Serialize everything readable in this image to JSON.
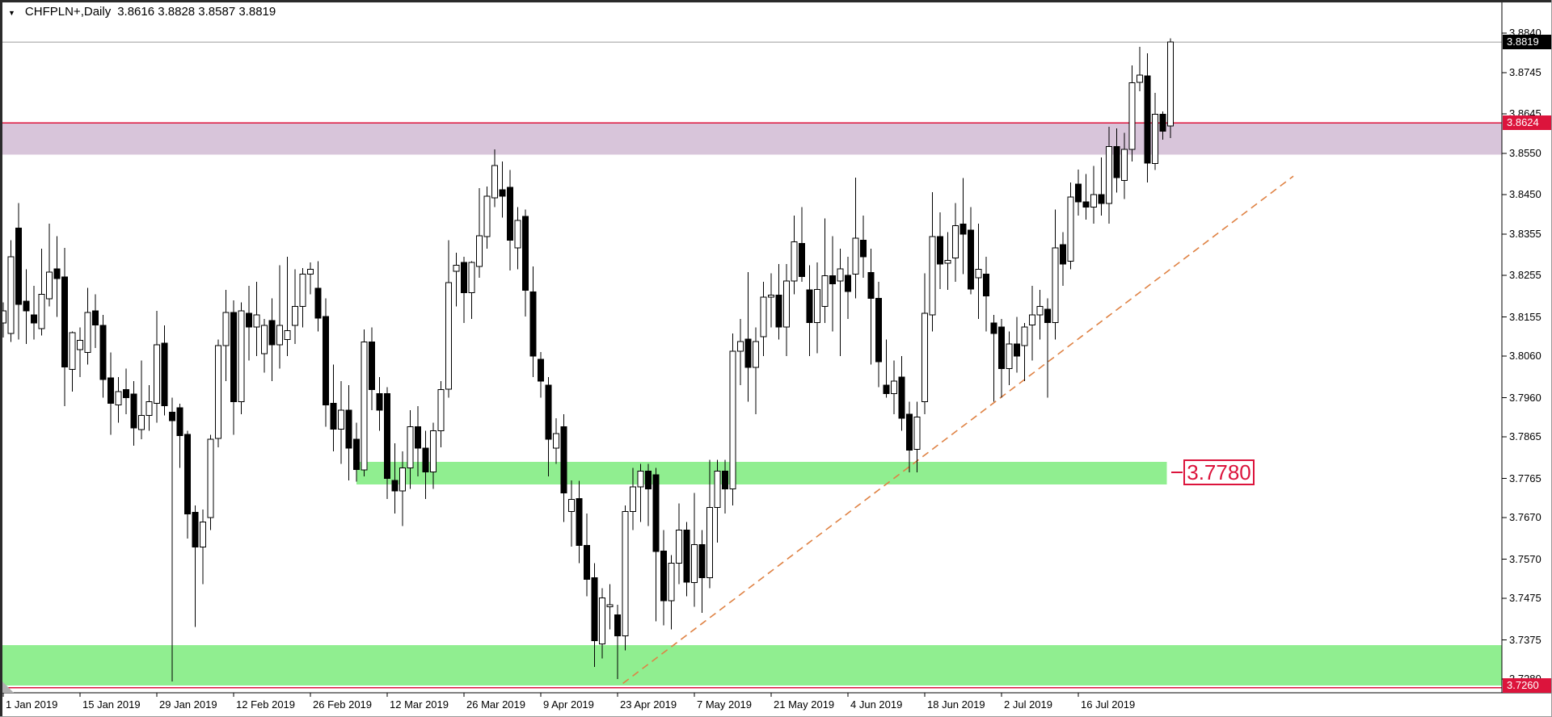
{
  "window": {
    "title_symbol": "CHFPLN+,Daily",
    "title_ohlc": "3.8616 3.8828 3.8587 3.8819",
    "dropdown_glyph": "▼"
  },
  "price_axis": {
    "ticks": [
      "3.8840",
      "3.8745",
      "3.8645",
      "3.8550",
      "3.8450",
      "3.8355",
      "3.8255",
      "3.8155",
      "3.8060",
      "3.7960",
      "3.7865",
      "3.7765",
      "3.7670",
      "3.7570",
      "3.7475",
      "3.7375",
      "3.7280"
    ],
    "tick_values": [
      3.884,
      3.8745,
      3.8645,
      3.855,
      3.845,
      3.8355,
      3.8255,
      3.8155,
      3.806,
      3.796,
      3.7865,
      3.7765,
      3.767,
      3.757,
      3.7475,
      3.7375,
      3.728
    ],
    "current_price_tag": "3.8819",
    "resistance_price_tag": "3.8624",
    "support_price_tag": "3.7260"
  },
  "time_axis": {
    "labels": [
      "1 Jan 2019",
      "15 Jan 2019",
      "29 Jan 2019",
      "12 Feb 2019",
      "26 Feb 2019",
      "12 Mar 2019",
      "26 Mar 2019",
      "9 Apr 2019",
      "23 Apr 2019",
      "7 May 2019",
      "21 May 2019",
      "4 Jun 2019",
      "18 Jun 2019",
      "2 Jul 2019",
      "16 Jul 2019"
    ]
  },
  "annotations": {
    "zone_price_label": "3.7780"
  },
  "colors": {
    "background": "#ffffff",
    "candle_outline": "#000000",
    "candle_bull_fill": "#ffffff",
    "candle_bear_fill": "#000000",
    "resistance_zone": "#d8c5da",
    "support_zone": "#90ee90",
    "crimson_line": "#dc143c",
    "current_price_line": "#bdbdbd",
    "current_tag_bg": "#000000",
    "crimson_tag_bg": "#dc143c",
    "trendline": "#df8244",
    "axis_text": "#000000"
  },
  "chart_data": {
    "type": "candlestick",
    "title": "CHFPLN+,Daily",
    "symbol": "CHFPLN+",
    "timeframe": "Daily",
    "current_ohlc": {
      "open": 3.8616,
      "high": 3.8828,
      "low": 3.8587,
      "close": 3.8819
    },
    "ylim": [
      3.7247,
      3.887
    ],
    "x_labels": [
      "1 Jan 2019",
      "15 Jan 2019",
      "29 Jan 2019",
      "12 Feb 2019",
      "26 Feb 2019",
      "12 Mar 2019",
      "26 Mar 2019",
      "9 Apr 2019",
      "23 Apr 2019",
      "7 May 2019",
      "21 May 2019",
      "4 Jun 2019",
      "18 Jun 2019",
      "2 Jul 2019",
      "16 Jul 2019"
    ],
    "x_label_every_n_candles": 10,
    "grid": false,
    "candles_ohlc": [
      [
        3.814,
        3.819,
        3.8105,
        3.817
      ],
      [
        3.8115,
        3.834,
        3.8095,
        3.83
      ],
      [
        3.837,
        3.843,
        3.81,
        3.8185
      ],
      [
        3.8193,
        3.827,
        3.809,
        3.817
      ],
      [
        3.816,
        3.823,
        3.81,
        3.814
      ],
      [
        3.8127,
        3.832,
        3.811,
        3.821
      ],
      [
        3.8199,
        3.838,
        3.818,
        3.8263
      ],
      [
        3.8271,
        3.835,
        3.8155,
        3.8248
      ],
      [
        3.8252,
        3.8322,
        3.794,
        3.8034
      ],
      [
        3.8028,
        3.812,
        3.7975,
        3.8117
      ],
      [
        3.8076,
        3.813,
        3.801,
        3.8098
      ],
      [
        3.8069,
        3.8225,
        3.804,
        3.8166
      ],
      [
        3.817,
        3.821,
        3.808,
        3.8135
      ],
      [
        3.8135,
        3.816,
        3.796,
        3.8004
      ],
      [
        3.8008,
        3.8069,
        3.787,
        3.7946
      ],
      [
        3.7942,
        3.801,
        3.79,
        3.7975
      ],
      [
        3.798,
        3.803,
        3.792,
        3.796
      ],
      [
        3.7969,
        3.8,
        3.7844,
        3.7887
      ],
      [
        3.7883,
        3.805,
        3.786,
        3.7917
      ],
      [
        3.7917,
        3.799,
        3.788,
        3.795
      ],
      [
        3.7946,
        3.817,
        3.79,
        3.8088
      ],
      [
        3.8092,
        3.8135,
        3.7917,
        3.794
      ],
      [
        3.7925,
        3.796,
        3.7275,
        3.7905
      ],
      [
        3.7936,
        3.7945,
        3.779,
        3.7868
      ],
      [
        3.7871,
        3.788,
        3.762,
        3.7679
      ],
      [
        3.7683,
        3.77,
        3.7406,
        3.7599
      ],
      [
        3.7599,
        3.769,
        3.751,
        3.766
      ],
      [
        3.767,
        3.787,
        3.764,
        3.786
      ],
      [
        3.7862,
        3.81,
        3.784,
        3.8086
      ],
      [
        3.8086,
        3.822,
        3.8,
        3.8166
      ],
      [
        3.8166,
        3.8195,
        3.787,
        3.795
      ],
      [
        3.795,
        3.819,
        3.792,
        3.817
      ],
      [
        3.8164,
        3.823,
        3.805,
        3.8131
      ],
      [
        3.8131,
        3.824,
        3.806,
        3.816
      ],
      [
        3.8066,
        3.815,
        3.802,
        3.8135
      ],
      [
        3.8146,
        3.82,
        3.8,
        3.8088
      ],
      [
        3.8088,
        3.828,
        3.803,
        3.8135
      ],
      [
        3.81,
        3.83,
        3.806,
        3.8122
      ],
      [
        3.8135,
        3.827,
        3.809,
        3.818
      ],
      [
        3.818,
        3.8273,
        3.813,
        3.8258
      ],
      [
        3.8258,
        3.8287,
        3.821,
        3.827
      ],
      [
        3.8224,
        3.829,
        3.812,
        3.8152
      ],
      [
        3.8156,
        3.82,
        3.789,
        3.7942
      ],
      [
        3.7946,
        3.804,
        3.783,
        3.7884
      ],
      [
        3.7884,
        3.8,
        3.78,
        3.793
      ],
      [
        3.793,
        3.799,
        3.776,
        3.7838
      ],
      [
        3.786,
        3.79,
        3.7757,
        3.7786
      ],
      [
        3.7786,
        3.8125,
        3.777,
        3.8095
      ],
      [
        3.8095,
        3.813,
        3.793,
        3.798
      ],
      [
        3.797,
        3.801,
        3.788,
        3.793
      ],
      [
        3.797,
        3.7985,
        3.7715,
        3.7765
      ],
      [
        3.776,
        3.785,
        3.768,
        3.7735
      ],
      [
        3.7735,
        3.783,
        3.765,
        3.779
      ],
      [
        3.779,
        3.793,
        3.774,
        3.789
      ],
      [
        3.789,
        3.794,
        3.777,
        3.7838
      ],
      [
        3.7838,
        3.788,
        3.7715,
        3.7781
      ],
      [
        3.7781,
        3.79,
        3.774,
        3.788
      ],
      [
        3.788,
        3.8,
        3.784,
        3.798
      ],
      [
        3.798,
        3.834,
        3.796,
        3.8238
      ],
      [
        3.8265,
        3.831,
        3.818,
        3.828
      ],
      [
        3.8287,
        3.83,
        3.814,
        3.8213
      ],
      [
        3.8213,
        3.829,
        3.815,
        3.8287
      ],
      [
        3.8277,
        3.8466,
        3.825,
        3.8351
      ],
      [
        3.8349,
        3.847,
        3.832,
        3.8447
      ],
      [
        3.8443,
        3.856,
        3.842,
        3.8521
      ],
      [
        3.8462,
        3.853,
        3.8395,
        3.8447
      ],
      [
        3.8468,
        3.851,
        3.8267,
        3.834
      ],
      [
        3.8322,
        3.842,
        3.827,
        3.8388
      ],
      [
        3.8398,
        3.8414,
        3.8156,
        3.8219
      ],
      [
        3.8215,
        3.8277,
        3.801,
        3.806
      ],
      [
        3.8053,
        3.807,
        3.796,
        3.8
      ],
      [
        3.799,
        3.801,
        3.777,
        3.786
      ],
      [
        3.7838,
        3.791,
        3.78,
        3.7873
      ],
      [
        3.789,
        3.792,
        3.766,
        3.773
      ],
      [
        3.7685,
        3.776,
        3.76,
        3.7714
      ],
      [
        3.7716,
        3.7759,
        3.756,
        3.7603
      ],
      [
        3.7603,
        3.768,
        3.748,
        3.7521
      ],
      [
        3.7525,
        3.756,
        3.731,
        3.7373
      ],
      [
        3.7365,
        3.75,
        3.733,
        3.7476
      ],
      [
        3.7455,
        3.751,
        3.74,
        3.746
      ],
      [
        3.7435,
        3.746,
        3.728,
        3.7385
      ],
      [
        3.7385,
        3.77,
        3.735,
        3.7685
      ],
      [
        3.7685,
        3.779,
        3.764,
        3.7745
      ],
      [
        3.7745,
        3.78,
        3.766,
        3.7783
      ],
      [
        3.7783,
        3.78,
        3.765,
        3.774
      ],
      [
        3.7774,
        3.779,
        3.742,
        3.7589
      ],
      [
        3.759,
        3.764,
        3.741,
        3.747
      ],
      [
        3.747,
        3.758,
        3.74,
        3.756
      ],
      [
        3.756,
        3.7705,
        3.751,
        3.764
      ],
      [
        3.764,
        3.766,
        3.748,
        3.7514
      ],
      [
        3.7514,
        3.773,
        3.7455,
        3.7605
      ],
      [
        3.7605,
        3.764,
        3.744,
        3.7525
      ],
      [
        3.7525,
        3.781,
        3.75,
        3.7695
      ],
      [
        3.7695,
        3.781,
        3.761,
        3.7783
      ],
      [
        3.7783,
        3.781,
        3.768,
        3.774
      ],
      [
        3.774,
        3.8115,
        3.77,
        3.8072
      ],
      [
        3.8072,
        3.815,
        3.799,
        3.8096
      ],
      [
        3.8101,
        3.8263,
        3.795,
        3.8033
      ],
      [
        3.8033,
        3.813,
        3.792,
        3.8096
      ],
      [
        3.8107,
        3.824,
        3.806,
        3.8203
      ],
      [
        3.8203,
        3.826,
        3.813,
        3.8208
      ],
      [
        3.8208,
        3.8283,
        3.81,
        3.8131
      ],
      [
        3.8131,
        3.8283,
        3.806,
        3.8242
      ],
      [
        3.8242,
        3.84,
        3.821,
        3.8336
      ],
      [
        3.8332,
        3.842,
        3.824,
        3.8252
      ],
      [
        3.822,
        3.828,
        3.806,
        3.8141
      ],
      [
        3.8141,
        3.8287,
        3.8067,
        3.8221
      ],
      [
        3.818,
        3.8393,
        3.814,
        3.8254
      ],
      [
        3.8254,
        3.835,
        3.812,
        3.8235
      ],
      [
        3.8242,
        3.832,
        3.806,
        3.8271
      ],
      [
        3.8255,
        3.83,
        3.815,
        3.8216
      ],
      [
        3.8258,
        3.8491,
        3.82,
        3.8345
      ],
      [
        3.834,
        3.84,
        3.825,
        3.83
      ],
      [
        3.8262,
        3.832,
        3.804,
        3.82
      ],
      [
        3.82,
        3.824,
        3.7985,
        3.8047
      ],
      [
        3.799,
        3.81,
        3.796,
        3.797
      ],
      [
        3.797,
        3.805,
        3.792,
        3.8
      ],
      [
        3.801,
        3.806,
        3.788,
        3.791
      ],
      [
        3.792,
        3.795,
        3.778,
        3.7833
      ],
      [
        3.7835,
        3.795,
        3.778,
        3.7913
      ],
      [
        3.795,
        3.826,
        3.792,
        3.8164
      ],
      [
        3.816,
        3.8456,
        3.812,
        3.8349
      ],
      [
        3.8349,
        3.8408,
        3.8222,
        3.8283
      ],
      [
        3.8285,
        3.836,
        3.822,
        3.8292
      ],
      [
        3.8297,
        3.843,
        3.824,
        3.8375
      ],
      [
        3.8379,
        3.849,
        3.8258,
        3.8355
      ],
      [
        3.8365,
        3.842,
        3.821,
        3.8222
      ],
      [
        3.825,
        3.838,
        3.815,
        3.827
      ],
      [
        3.8258,
        3.83,
        3.812,
        3.8206
      ],
      [
        3.814,
        3.816,
        3.795,
        3.8115
      ],
      [
        3.8131,
        3.815,
        3.796,
        3.803
      ],
      [
        3.803,
        3.812,
        3.799,
        3.809
      ],
      [
        3.809,
        3.8155,
        3.802,
        3.806
      ],
      [
        3.8086,
        3.814,
        3.8,
        3.8131
      ],
      [
        3.8135,
        3.823,
        3.805,
        3.816
      ],
      [
        3.816,
        3.822,
        3.81,
        3.818
      ],
      [
        3.8174,
        3.82,
        3.796,
        3.8141
      ],
      [
        3.8141,
        3.8414,
        3.81,
        3.8322
      ],
      [
        3.833,
        3.836,
        3.823,
        3.8283
      ],
      [
        3.829,
        3.848,
        3.827,
        3.8445
      ],
      [
        3.8476,
        3.8511,
        3.84,
        3.8433
      ],
      [
        3.8433,
        3.85,
        3.839,
        3.842
      ],
      [
        3.842,
        3.852,
        3.838,
        3.845
      ],
      [
        3.845,
        3.854,
        3.84,
        3.8429
      ],
      [
        3.8429,
        3.8614,
        3.838,
        3.8566
      ],
      [
        3.8566,
        3.861,
        3.8455,
        3.8491
      ],
      [
        3.8485,
        3.86,
        3.844,
        3.856
      ],
      [
        3.856,
        3.8762,
        3.853,
        3.8721
      ],
      [
        3.8721,
        3.8807,
        3.87,
        3.8739
      ],
      [
        3.8737,
        3.8792,
        3.848,
        3.8527
      ],
      [
        3.8525,
        3.8696,
        3.851,
        3.8644
      ],
      [
        3.8644,
        3.8651,
        3.8583,
        3.8603
      ],
      [
        3.8616,
        3.8828,
        3.8587,
        3.8819
      ]
    ],
    "zones": [
      {
        "name": "resistance-zone",
        "price_top": 3.8624,
        "price_bottom": 3.8547,
        "full_width": true,
        "color": "#d8c5da"
      },
      {
        "name": "support-zone-mid",
        "price_top": 3.7805,
        "price_bottom": 3.775,
        "start_index": 46,
        "end_index": 151.5,
        "color": "#90ee90",
        "label": "3.7780"
      },
      {
        "name": "support-zone-low",
        "price_top": 3.7362,
        "price_bottom": 3.7265,
        "full_width": true,
        "color": "#90ee90"
      }
    ],
    "hlines": [
      {
        "name": "current-price-line",
        "price": 3.8819,
        "color": "#bdbdbd",
        "style": "solid"
      },
      {
        "name": "resistance-level-line",
        "price": 3.8624,
        "color": "#dc143c",
        "style": "solid"
      },
      {
        "name": "support-level-line",
        "price": 3.726,
        "color": "#dc143c",
        "style": "solid"
      }
    ],
    "trendline": {
      "name": "ascending-trendline",
      "style": "dashed",
      "color": "#df8244",
      "point1": {
        "index": 80.7,
        "price": 3.727
      },
      "point2": {
        "index": 168,
        "price": 3.8495
      }
    }
  }
}
